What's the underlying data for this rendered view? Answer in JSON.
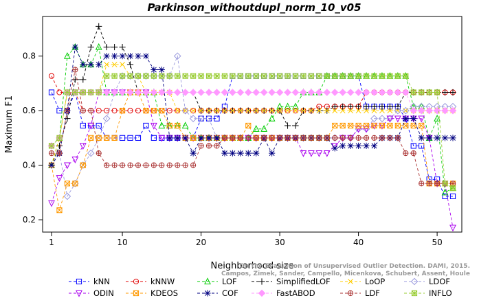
{
  "chart_data": {
    "type": "line",
    "title": "Parkinson_withoutdupl_norm_10_v05",
    "xlabel": "Neighborhood size",
    "ylabel": "Maximum F1",
    "xlim": [
      1,
      52
    ],
    "ylim": [
      0.18,
      0.92
    ],
    "x_ticks": [
      1,
      10,
      20,
      30,
      40,
      50
    ],
    "y_ticks": [
      0.2,
      0.4,
      0.6,
      0.8
    ],
    "grid": false,
    "legend_position": "bottom",
    "x": [
      1,
      2,
      3,
      4,
      5,
      6,
      7,
      8,
      9,
      10,
      11,
      12,
      13,
      14,
      15,
      16,
      17,
      18,
      19,
      20,
      21,
      22,
      23,
      24,
      25,
      26,
      27,
      28,
      29,
      30,
      31,
      32,
      33,
      34,
      35,
      36,
      37,
      38,
      39,
      40,
      41,
      42,
      43,
      44,
      45,
      46,
      47,
      48,
      49,
      50,
      51,
      52
    ],
    "series": [
      {
        "name": "kNN",
        "color": "#0000ff",
        "marker": "square",
        "values": [
          0.667,
          0.6,
          0.6,
          0.667,
          0.545,
          0.545,
          0.545,
          0.5,
          0.5,
          0.5,
          0.5,
          0.5,
          0.545,
          0.5,
          0.5,
          0.5,
          0.5,
          0.5,
          0.5,
          0.571,
          0.571,
          0.571,
          0.615,
          0.727,
          0.727,
          0.727,
          0.727,
          0.727,
          0.727,
          0.727,
          0.727,
          0.727,
          0.727,
          0.727,
          0.727,
          0.727,
          0.727,
          0.727,
          0.727,
          0.727,
          0.615,
          0.615,
          0.615,
          0.615,
          0.615,
          0.571,
          0.471,
          0.471,
          0.348,
          0.348,
          0.286,
          0.286
        ]
      },
      {
        "name": "kNNW",
        "color": "#e00000",
        "marker": "circle",
        "values": [
          0.727,
          0.667,
          0.667,
          0.667,
          0.6,
          0.6,
          0.6,
          0.6,
          0.6,
          0.6,
          0.6,
          0.6,
          0.6,
          0.6,
          0.6,
          0.6,
          0.6,
          0.6,
          0.6,
          0.6,
          0.6,
          0.6,
          0.6,
          0.6,
          0.6,
          0.6,
          0.6,
          0.6,
          0.6,
          0.6,
          0.6,
          0.6,
          0.6,
          0.6,
          0.615,
          0.615,
          0.615,
          0.615,
          0.615,
          0.615,
          0.667,
          0.667,
          0.667,
          0.667,
          0.667,
          0.667,
          0.667,
          0.667,
          0.667,
          0.667,
          0.667,
          0.667
        ]
      },
      {
        "name": "LOF",
        "color": "#00cc00",
        "marker": "triangle-up",
        "values": [
          0.4,
          0.5,
          0.8,
          0.833,
          0.769,
          0.769,
          0.833,
          0.667,
          0.667,
          0.667,
          0.667,
          0.667,
          0.667,
          0.667,
          0.545,
          0.545,
          0.545,
          0.545,
          0.5,
          0.5,
          0.5,
          0.5,
          0.5,
          0.5,
          0.5,
          0.5,
          0.533,
          0.533,
          0.571,
          0.615,
          0.615,
          0.615,
          0.667,
          0.667,
          0.667,
          0.727,
          0.727,
          0.727,
          0.727,
          0.727,
          0.727,
          0.727,
          0.727,
          0.727,
          0.727,
          0.727,
          0.615,
          0.615,
          0.5,
          0.571,
          0.3,
          0.316
        ]
      },
      {
        "name": "SimplifiedLOF",
        "color": "#000000",
        "marker": "plus",
        "values": [
          0.4,
          0.471,
          0.571,
          0.714,
          0.714,
          0.833,
          0.909,
          0.833,
          0.833,
          0.833,
          0.769,
          0.667,
          0.667,
          0.667,
          0.667,
          0.667,
          0.667,
          0.667,
          0.667,
          0.6,
          0.6,
          0.6,
          0.6,
          0.6,
          0.6,
          0.6,
          0.6,
          0.6,
          0.6,
          0.6,
          0.545,
          0.545,
          0.6,
          0.6,
          0.6,
          0.6,
          0.615,
          0.615,
          0.615,
          0.615,
          0.615,
          0.615,
          0.615,
          0.615,
          0.615,
          0.667,
          0.667,
          0.667,
          0.667,
          0.667,
          0.667,
          0.667
        ]
      },
      {
        "name": "LoOP",
        "color": "#ffcc00",
        "marker": "cross",
        "values": [
          0.4,
          0.5,
          0.667,
          0.667,
          0.667,
          0.667,
          0.667,
          0.769,
          0.769,
          0.769,
          0.727,
          0.727,
          0.667,
          0.667,
          0.667,
          0.667,
          0.6,
          0.6,
          0.6,
          0.6,
          0.6,
          0.6,
          0.6,
          0.6,
          0.6,
          0.6,
          0.6,
          0.6,
          0.6,
          0.6,
          0.6,
          0.6,
          0.6,
          0.6,
          0.6,
          0.6,
          0.6,
          0.6,
          0.6,
          0.6,
          0.6,
          0.6,
          0.6,
          0.6,
          0.6,
          0.6,
          0.6,
          0.6,
          0.6,
          0.6,
          0.6,
          0.6
        ]
      },
      {
        "name": "LDOF",
        "color": "#9999dd",
        "marker": "diamond",
        "values": [
          0.4,
          0.444,
          0.286,
          0.333,
          0.4,
          0.444,
          0.5,
          0.571,
          0.667,
          0.727,
          0.727,
          0.727,
          0.727,
          0.727,
          0.727,
          0.727,
          0.8,
          0.6,
          0.571,
          0.571,
          0.571,
          0.5,
          0.5,
          0.5,
          0.5,
          0.5,
          0.5,
          0.5,
          0.5,
          0.5,
          0.5,
          0.5,
          0.5,
          0.5,
          0.5,
          0.5,
          0.5,
          0.5,
          0.5,
          0.533,
          0.533,
          0.571,
          0.571,
          0.571,
          0.6,
          0.6,
          0.615,
          0.615,
          0.615,
          0.615,
          0.615,
          0.615
        ]
      },
      {
        "name": "ODIN",
        "color": "#aa00ee",
        "marker": "triangle-down",
        "values": [
          0.261,
          0.353,
          0.4,
          0.421,
          0.471,
          0.545,
          0.667,
          0.667,
          0.667,
          0.667,
          0.667,
          0.667,
          0.667,
          0.545,
          0.5,
          0.5,
          0.5,
          0.5,
          0.5,
          0.5,
          0.5,
          0.5,
          0.5,
          0.5,
          0.5,
          0.5,
          0.5,
          0.5,
          0.5,
          0.5,
          0.5,
          0.5,
          0.444,
          0.444,
          0.444,
          0.444,
          0.471,
          0.5,
          0.5,
          0.533,
          0.533,
          0.545,
          0.545,
          0.571,
          0.571,
          0.571,
          0.571,
          0.571,
          0.5,
          0.333,
          0.333,
          0.171
        ]
      },
      {
        "name": "KDEOS",
        "color": "#ff9900",
        "marker": "boxed-x",
        "values": [
          0.4,
          0.235,
          0.333,
          0.333,
          0.4,
          0.5,
          0.5,
          0.5,
          0.5,
          0.6,
          0.667,
          0.667,
          0.6,
          0.6,
          0.6,
          0.545,
          0.545,
          0.5,
          0.5,
          0.5,
          0.5,
          0.5,
          0.5,
          0.5,
          0.5,
          0.545,
          0.5,
          0.5,
          0.5,
          0.5,
          0.5,
          0.5,
          0.5,
          0.5,
          0.5,
          0.5,
          0.545,
          0.545,
          0.545,
          0.545,
          0.545,
          0.545,
          0.545,
          0.545,
          0.545,
          0.545,
          0.545,
          0.545,
          0.333,
          0.333,
          0.333,
          0.333
        ]
      },
      {
        "name": "COF",
        "color": "#000080",
        "marker": "asterisk",
        "values": [
          0.4,
          0.444,
          0.6,
          0.833,
          0.769,
          0.769,
          0.769,
          0.8,
          0.8,
          0.8,
          0.8,
          0.8,
          0.8,
          0.75,
          0.75,
          0.5,
          0.5,
          0.5,
          0.444,
          0.5,
          0.5,
          0.5,
          0.444,
          0.444,
          0.444,
          0.444,
          0.444,
          0.5,
          0.444,
          0.5,
          0.5,
          0.5,
          0.5,
          0.5,
          0.5,
          0.5,
          0.462,
          0.471,
          0.471,
          0.471,
          0.471,
          0.471,
          0.5,
          0.5,
          0.5,
          0.571,
          0.571,
          0.5,
          0.5,
          0.5,
          0.5,
          0.5
        ]
      },
      {
        "name": "FastABOD",
        "color": "#ff99ff",
        "marker": "diamond-filled",
        "values": [
          0.471,
          0.5,
          0.667,
          0.667,
          0.667,
          0.667,
          0.667,
          0.667,
          0.667,
          0.667,
          0.667,
          0.667,
          0.667,
          0.667,
          0.667,
          0.667,
          0.667,
          0.667,
          0.667,
          0.667,
          0.667,
          0.667,
          0.667,
          0.667,
          0.667,
          0.667,
          0.667,
          0.667,
          0.667,
          0.667,
          0.667,
          0.667,
          0.667,
          0.667,
          0.667,
          0.667,
          0.667,
          0.667,
          0.667,
          0.667,
          0.667,
          0.667,
          0.667,
          0.667,
          0.667,
          0.667,
          0.6,
          0.6,
          0.6,
          0.6,
          0.6,
          0.6
        ]
      },
      {
        "name": "LDF",
        "color": "#aa3333",
        "marker": "circle-plus",
        "values": [
          0.444,
          0.444,
          0.6,
          0.75,
          0.6,
          0.6,
          0.444,
          0.4,
          0.4,
          0.4,
          0.4,
          0.4,
          0.4,
          0.4,
          0.4,
          0.4,
          0.4,
          0.4,
          0.4,
          0.471,
          0.471,
          0.471,
          0.5,
          0.5,
          0.5,
          0.5,
          0.5,
          0.5,
          0.5,
          0.5,
          0.5,
          0.5,
          0.5,
          0.5,
          0.5,
          0.5,
          0.5,
          0.5,
          0.5,
          0.5,
          0.5,
          0.5,
          0.5,
          0.5,
          0.5,
          0.444,
          0.444,
          0.333,
          0.333,
          0.333,
          0.333,
          0.333
        ]
      },
      {
        "name": "INFLO",
        "color": "#99cc33",
        "marker": "boxed-asterisk",
        "values": [
          0.471,
          0.5,
          0.667,
          0.667,
          0.667,
          0.667,
          0.667,
          0.727,
          0.727,
          0.727,
          0.727,
          0.727,
          0.727,
          0.727,
          0.727,
          0.727,
          0.727,
          0.727,
          0.727,
          0.727,
          0.727,
          0.727,
          0.727,
          0.727,
          0.727,
          0.727,
          0.727,
          0.727,
          0.727,
          0.727,
          0.727,
          0.727,
          0.727,
          0.727,
          0.727,
          0.727,
          0.727,
          0.727,
          0.727,
          0.727,
          0.727,
          0.727,
          0.727,
          0.727,
          0.727,
          0.727,
          0.667,
          0.667,
          0.667,
          0.667,
          0.333,
          0.316
        ]
      }
    ],
    "legend_rows": [
      [
        "kNN",
        "kNNW",
        "LOF",
        "SimplifiedLOF",
        "LoOP",
        "LDOF"
      ],
      [
        "ODIN",
        "KDEOS",
        "COF",
        "FastABOD",
        "LDF",
        "INFLO"
      ]
    ],
    "annotation": "Campos, Zimek, Sander, Campello, Micenkova, Schubert, Assent, Houle On the Evaluation of Unsupervised Outlier Detection. DAMI, 2015.",
    "annotation_line1": "On the Evaluation of Unsupervised Outlier Detection. DAMI, 2015.",
    "annotation_line2": "Campos, Zimek, Sander, Campello, Micenkova, Schubert, Assent, Houle"
  }
}
